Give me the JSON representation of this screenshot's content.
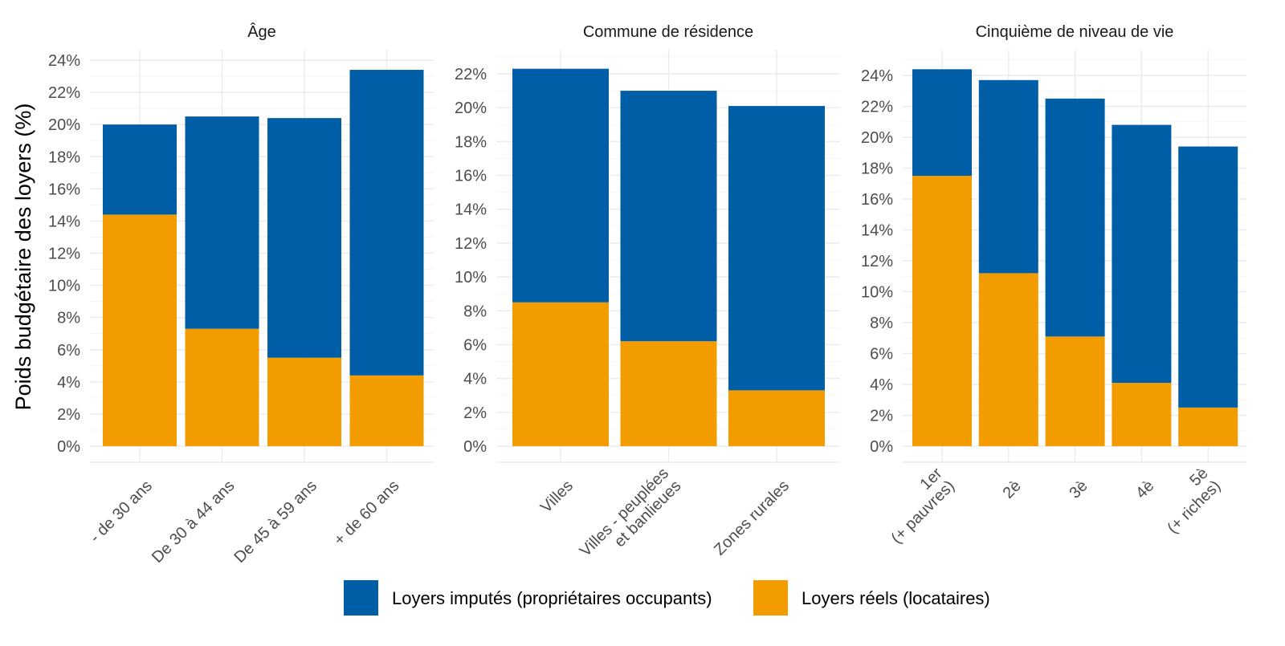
{
  "chart_data": {
    "type": "bar",
    "stacked": true,
    "ylabel": "Poids budgétaire des loyers (%)",
    "grid": true,
    "legend_position": "bottom",
    "series_order_bottom_to_top": [
      "Loyers réels (locataires)",
      "Loyers imputés (propriétaires occupants)"
    ],
    "colors": {
      "Loyers imputés (propriétaires occupants)": "#005EA6",
      "Loyers réels (locataires)": "#F39C00"
    },
    "legend": [
      {
        "label": "Loyers imputés (propriétaires occupants)",
        "color": "#005EA6"
      },
      {
        "label": "Loyers réels (locataires)",
        "color": "#F39C00"
      }
    ],
    "panels": [
      {
        "title": "Âge",
        "ylim": [
          0,
          24
        ],
        "yticks": [
          0,
          2,
          4,
          6,
          8,
          10,
          12,
          14,
          16,
          18,
          20,
          22,
          24
        ],
        "categories": [
          [
            "- de 30 ans"
          ],
          [
            "De 30 à 44 ans"
          ],
          [
            "De 45 à 59 ans"
          ],
          [
            "+ de 60 ans"
          ]
        ],
        "series": [
          {
            "name": "Loyers réels (locataires)",
            "values": [
              14.4,
              7.3,
              5.5,
              4.4
            ]
          },
          {
            "name": "Loyers imputés (propriétaires occupants)",
            "values": [
              5.6,
              13.2,
              14.9,
              19.0
            ]
          }
        ],
        "totals": [
          20.0,
          20.5,
          20.4,
          23.4
        ]
      },
      {
        "title": "Commune de résidence",
        "ylim": [
          0,
          22
        ],
        "yticks": [
          0,
          2,
          4,
          6,
          8,
          10,
          12,
          14,
          16,
          18,
          20,
          22
        ],
        "categories": [
          [
            "Villes"
          ],
          [
            "Villes - peuplées",
            "et banlieues"
          ],
          [
            "Zones rurales"
          ]
        ],
        "series": [
          {
            "name": "Loyers réels (locataires)",
            "values": [
              8.5,
              6.2,
              3.3
            ]
          },
          {
            "name": "Loyers imputés (propriétaires occupants)",
            "values": [
              13.8,
              14.8,
              16.8
            ]
          }
        ],
        "totals": [
          22.3,
          21.0,
          20.1
        ]
      },
      {
        "title": "Cinquième de niveau de vie",
        "ylim": [
          0,
          24
        ],
        "yticks": [
          0,
          2,
          4,
          6,
          8,
          10,
          12,
          14,
          16,
          18,
          20,
          22,
          24
        ],
        "categories": [
          [
            "1er",
            "(+ pauvres)"
          ],
          [
            "2è"
          ],
          [
            "3è"
          ],
          [
            "4è"
          ],
          [
            "5è",
            "(+ riches)"
          ]
        ],
        "series": [
          {
            "name": "Loyers réels (locataires)",
            "values": [
              17.5,
              11.2,
              7.1,
              4.1,
              2.5
            ]
          },
          {
            "name": "Loyers imputés (propriétaires occupants)",
            "values": [
              6.9,
              12.5,
              15.4,
              16.7,
              16.9
            ]
          }
        ],
        "totals": [
          24.4,
          23.7,
          22.5,
          20.8,
          19.4
        ]
      }
    ]
  }
}
